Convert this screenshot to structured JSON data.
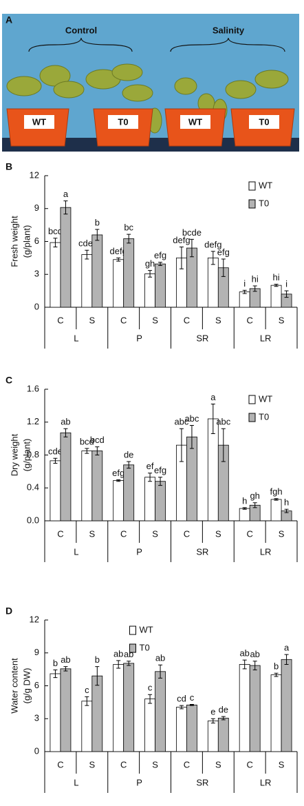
{
  "panel_a": {
    "label": "A",
    "groups": [
      "Control",
      "Salinity"
    ],
    "pot_labels": [
      "WT",
      "T0",
      "WT",
      "T0"
    ]
  },
  "chart_data": [
    {
      "type": "bar",
      "panel": "B",
      "ylabel": [
        "Fresh weight",
        "(g/plant)"
      ],
      "categories": [
        "C",
        "S",
        "C",
        "S",
        "C",
        "S",
        "C",
        "S"
      ],
      "groups": [
        "L",
        "P",
        "SR",
        "LR"
      ],
      "ylim": [
        0,
        12
      ],
      "yticks": [
        0,
        3,
        6,
        9,
        12
      ],
      "legend": "upper right",
      "series": [
        {
          "name": "WT",
          "color": "#ffffff",
          "values": [
            5.9,
            4.8,
            4.35,
            3.05,
            4.5,
            4.5,
            1.4,
            2.0
          ],
          "errors": [
            0.4,
            0.4,
            0.15,
            0.3,
            1.0,
            0.6,
            0.15,
            0.1
          ],
          "significance": [
            "bcd",
            "cdef",
            "defg",
            "gh",
            "defg",
            "defg",
            "i",
            "hi"
          ]
        },
        {
          "name": "T0",
          "color": "#b3b3b3",
          "values": [
            9.1,
            6.6,
            6.25,
            3.95,
            5.4,
            3.6,
            1.7,
            1.2
          ],
          "errors": [
            0.6,
            0.5,
            0.4,
            0.15,
            0.8,
            0.8,
            0.25,
            0.3
          ],
          "significance": [
            "a",
            "b",
            "bc",
            "efg",
            "bcde",
            "efg",
            "hi",
            "i"
          ]
        }
      ]
    },
    {
      "type": "bar",
      "panel": "C",
      "ylabel": [
        "Dry weight",
        "(g/plant)"
      ],
      "categories": [
        "C",
        "S",
        "C",
        "S",
        "C",
        "S",
        "C",
        "S"
      ],
      "groups": [
        "L",
        "P",
        "SR",
        "LR"
      ],
      "ylim": [
        0,
        1.6
      ],
      "yticks": [
        {
          "value": 0,
          "label": "0.0"
        },
        0.4,
        0.8,
        1.2,
        1.6
      ],
      "legend": "upper right",
      "series": [
        {
          "name": "WT",
          "color": "#ffffff",
          "values": [
            0.73,
            0.85,
            0.49,
            0.53,
            0.92,
            1.24,
            0.15,
            0.26
          ],
          "errors": [
            0.03,
            0.03,
            0.01,
            0.05,
            0.2,
            0.18,
            0.01,
            0.01
          ],
          "significance": [
            "cde",
            "bcd",
            "efg",
            "ef",
            "abc",
            "a",
            "h",
            "fgh"
          ]
        },
        {
          "name": "T0",
          "color": "#b3b3b3",
          "values": [
            1.07,
            0.85,
            0.68,
            0.48,
            1.02,
            0.92,
            0.19,
            0.12
          ],
          "errors": [
            0.05,
            0.05,
            0.04,
            0.05,
            0.14,
            0.2,
            0.03,
            0.02
          ],
          "significance": [
            "ab",
            "bcd",
            "de",
            "efg",
            "abc",
            "abc",
            "gh",
            "h"
          ]
        }
      ]
    },
    {
      "type": "bar",
      "panel": "D",
      "ylabel": [
        "Water content",
        "(g/g DW)"
      ],
      "categories": [
        "C",
        "S",
        "C",
        "S",
        "C",
        "S",
        "C",
        "S"
      ],
      "groups": [
        "L",
        "P",
        "SR",
        "LR"
      ],
      "ylim": [
        0,
        12
      ],
      "yticks": [
        0,
        3,
        6,
        9,
        12
      ],
      "legend": "upper center",
      "series": [
        {
          "name": "WT",
          "color": "#ffffff",
          "values": [
            7.1,
            4.6,
            7.95,
            4.8,
            4.05,
            2.8,
            7.95,
            7.0
          ],
          "errors": [
            0.35,
            0.4,
            0.35,
            0.4,
            0.15,
            0.2,
            0.4,
            0.15
          ],
          "significance": [
            "b",
            "c",
            "ab",
            "c",
            "cd",
            "e",
            "ab",
            "b"
          ]
        },
        {
          "name": "T0",
          "color": "#b3b3b3",
          "values": [
            7.55,
            6.9,
            8.05,
            7.3,
            4.25,
            3.05,
            7.85,
            8.4
          ],
          "errors": [
            0.2,
            0.85,
            0.2,
            0.6,
            0.05,
            0.15,
            0.4,
            0.45
          ],
          "significance": [
            "ab",
            "b",
            "ab",
            "ab",
            "c",
            "de",
            "ab",
            "a"
          ]
        }
      ]
    }
  ]
}
